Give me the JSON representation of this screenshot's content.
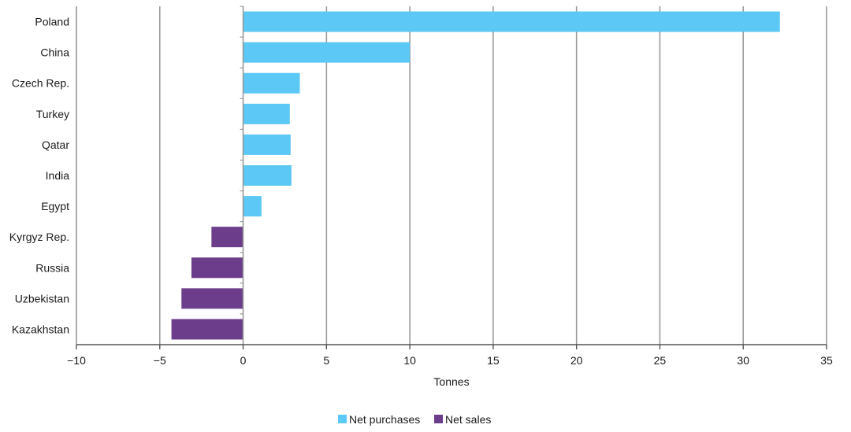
{
  "chart_data": {
    "type": "bar",
    "orientation": "horizontal",
    "categories": [
      "Poland",
      "China",
      "Czech Rep.",
      "Turkey",
      "Qatar",
      "India",
      "Egypt",
      "Kyrgyz Rep.",
      "Russia",
      "Uzbekistan",
      "Kazakhstan"
    ],
    "values": [
      32.2,
      10.0,
      3.4,
      2.8,
      2.85,
      2.9,
      1.1,
      -1.9,
      -3.1,
      -3.7,
      -4.3
    ],
    "series": [
      {
        "name": "Net purchases",
        "color": "#5bc8f5"
      },
      {
        "name": "Net sales",
        "color": "#6b3d8a"
      }
    ],
    "xlabel": "Tonnes",
    "ylabel": "",
    "xlim": [
      -10,
      35
    ],
    "xticks": [
      -10,
      -5,
      0,
      5,
      10,
      15,
      20,
      25,
      30,
      35
    ],
    "xtick_labels": [
      "−10",
      "−5",
      "0",
      "5",
      "10",
      "15",
      "20",
      "25",
      "30",
      "35"
    ],
    "grid": "vertical",
    "legend_position": "bottom-center"
  }
}
